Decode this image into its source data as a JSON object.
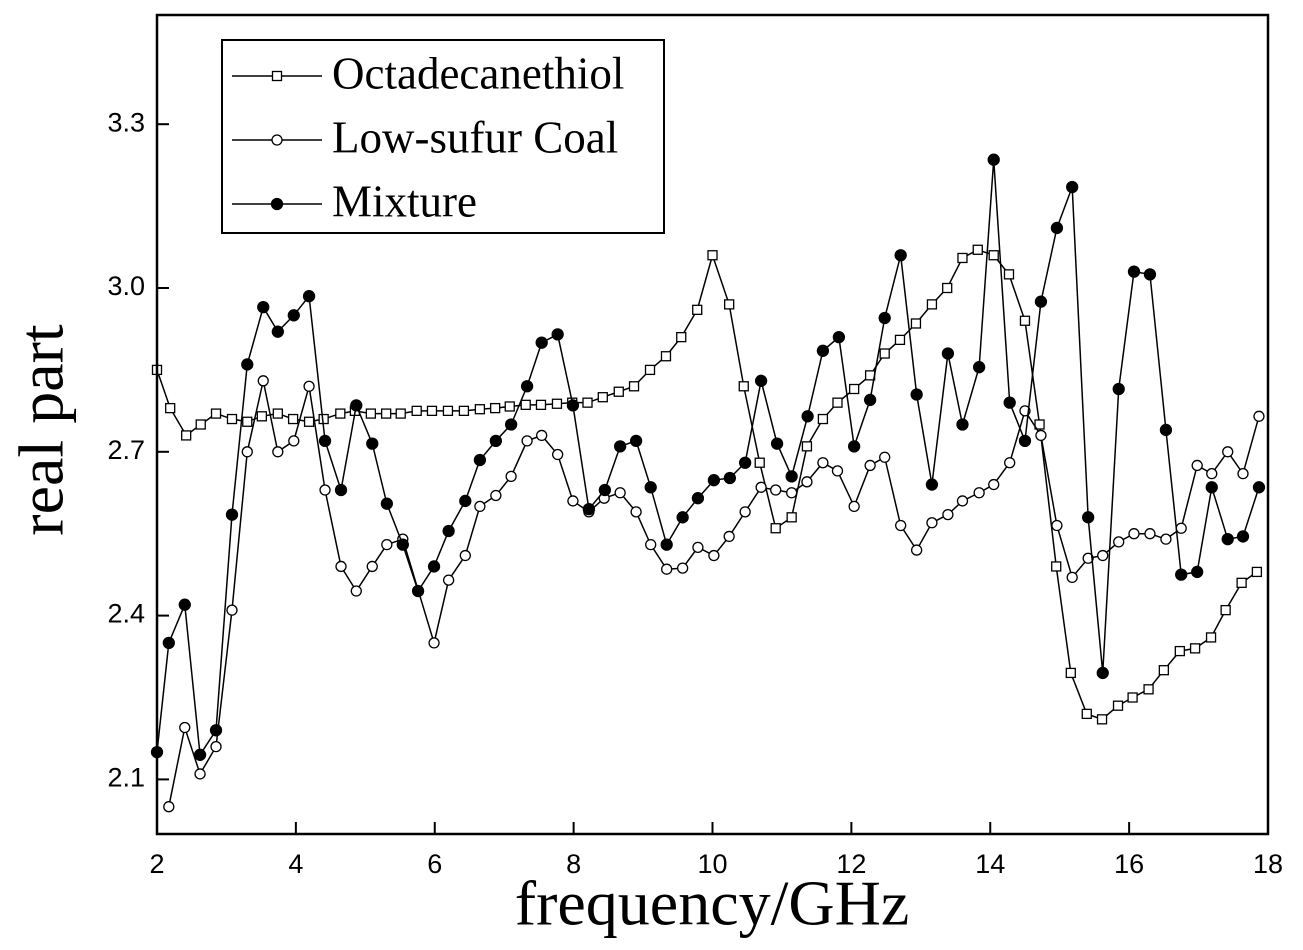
{
  "chart_data": {
    "type": "line",
    "xlabel": "frequency/GHz",
    "ylabel": "real part",
    "xlim": [
      2,
      18
    ],
    "ylim": [
      2.0,
      3.5
    ],
    "xticks": [
      2,
      4,
      6,
      8,
      10,
      12,
      14,
      16,
      18
    ],
    "yticks": [
      2.1,
      2.4,
      2.7,
      {
        "value": 3,
        "label": "3.0"
      },
      3.3
    ],
    "legend": "upper left",
    "series": [
      {
        "name": "Octadecanethiol",
        "color": "#000000",
        "marker": "square",
        "x": [
          2.0,
          2.19,
          2.42,
          2.63,
          2.85,
          3.08,
          3.3,
          3.51,
          3.74,
          3.96,
          4.19,
          4.4,
          4.64,
          4.85,
          5.08,
          5.3,
          5.51,
          5.74,
          5.96,
          6.19,
          6.42,
          6.65,
          6.87,
          7.08,
          7.31,
          7.53,
          7.76,
          7.98,
          8.2,
          8.42,
          8.65,
          8.87,
          9.1,
          9.33,
          9.55,
          9.78,
          10.0,
          10.24,
          10.45,
          10.68,
          10.91,
          11.14,
          11.36,
          11.59,
          11.8,
          12.04,
          12.27,
          12.48,
          12.7,
          12.93,
          13.16,
          13.38,
          13.6,
          13.82,
          14.05,
          14.27,
          14.5,
          14.71,
          14.95,
          15.16,
          15.39,
          15.61,
          15.84,
          16.05,
          16.28,
          16.5,
          16.73,
          16.95,
          17.18,
          17.39,
          17.62,
          17.84
        ],
        "values": [
          2.85,
          2.78,
          2.73,
          2.75,
          2.77,
          2.76,
          2.755,
          2.765,
          2.77,
          2.76,
          2.755,
          2.76,
          2.77,
          2.775,
          2.77,
          2.77,
          2.77,
          2.775,
          2.775,
          2.775,
          2.775,
          2.778,
          2.78,
          2.783,
          2.786,
          2.786,
          2.788,
          2.79,
          2.79,
          2.8,
          2.81,
          2.82,
          2.85,
          2.875,
          2.91,
          2.96,
          3.06,
          2.97,
          2.82,
          2.68,
          2.56,
          2.58,
          2.71,
          2.76,
          2.79,
          2.815,
          2.84,
          2.88,
          2.905,
          2.935,
          2.97,
          3.0,
          3.055,
          3.07,
          3.06,
          3.025,
          2.94,
          2.75,
          2.49,
          2.295,
          2.22,
          2.21,
          2.235,
          2.25,
          2.265,
          2.3,
          2.335,
          2.34,
          2.36,
          2.41,
          2.46,
          2.48
        ]
      },
      {
        "name": "Low-sufur Coal",
        "color": "#000000",
        "marker": "circle",
        "x": [
          2.17,
          2.4,
          2.62,
          2.85,
          3.08,
          3.3,
          3.53,
          3.74,
          3.97,
          4.19,
          4.42,
          4.65,
          4.87,
          5.1,
          5.31,
          5.54,
          5.99,
          6.2,
          6.44,
          6.65,
          6.88,
          7.1,
          7.33,
          7.54,
          7.77,
          7.99,
          8.22,
          8.44,
          8.67,
          8.9,
          9.11,
          9.34,
          9.57,
          9.79,
          10.02,
          10.24,
          10.47,
          10.7,
          10.91,
          11.14,
          11.36,
          11.59,
          11.8,
          12.04,
          12.27,
          12.48,
          12.71,
          12.94,
          13.16,
          13.39,
          13.6,
          13.84,
          14.05,
          14.28,
          14.5,
          14.73,
          14.96,
          15.18,
          15.41,
          15.62,
          15.85,
          16.07,
          16.3,
          16.53,
          16.75,
          16.98,
          17.19,
          17.42,
          17.64,
          17.87
        ],
        "values": [
          2.05,
          2.195,
          2.11,
          2.16,
          2.41,
          2.7,
          2.83,
          2.7,
          2.72,
          2.82,
          2.63,
          2.49,
          2.445,
          2.49,
          2.53,
          2.54,
          2.35,
          2.465,
          2.51,
          2.6,
          2.62,
          2.655,
          2.72,
          2.73,
          2.695,
          2.61,
          2.59,
          2.615,
          2.625,
          2.59,
          2.53,
          2.485,
          2.487,
          2.525,
          2.51,
          2.545,
          2.59,
          2.635,
          2.63,
          2.625,
          2.645,
          2.68,
          2.665,
          2.6,
          2.675,
          2.69,
          2.565,
          2.52,
          2.57,
          2.585,
          2.61,
          2.625,
          2.64,
          2.68,
          2.775,
          2.73,
          2.565,
          2.47,
          2.505,
          2.51,
          2.535,
          2.55,
          2.55,
          2.54,
          2.56,
          2.675,
          2.66,
          2.7,
          2.66,
          2.765
        ]
      },
      {
        "name": "Mixture",
        "color": "#000000",
        "marker": "disc",
        "x": [
          2.0,
          2.17,
          2.4,
          2.62,
          2.85,
          3.08,
          3.3,
          3.53,
          3.74,
          3.97,
          4.19,
          4.42,
          4.65,
          4.87,
          5.1,
          5.31,
          5.54,
          5.76,
          5.99,
          6.2,
          6.44,
          6.65,
          6.88,
          7.1,
          7.33,
          7.54,
          7.77,
          7.99,
          8.22,
          8.45,
          8.67,
          8.9,
          9.11,
          9.34,
          9.57,
          9.79,
          10.02,
          10.25,
          10.47,
          10.7,
          10.93,
          11.14,
          11.37,
          11.59,
          11.82,
          12.04,
          12.27,
          12.48,
          12.71,
          12.94,
          13.16,
          13.39,
          13.6,
          13.84,
          14.05,
          14.28,
          14.5,
          14.73,
          14.96,
          15.18,
          15.41,
          15.62,
          15.85,
          16.07,
          16.3,
          16.53,
          16.75,
          16.98,
          17.19,
          17.42,
          17.64,
          17.87
        ],
        "values": [
          2.15,
          2.35,
          2.42,
          2.145,
          2.19,
          2.585,
          2.86,
          2.965,
          2.92,
          2.95,
          2.985,
          2.72,
          2.63,
          2.785,
          2.715,
          2.605,
          2.53,
          2.445,
          2.49,
          2.555,
          2.61,
          2.685,
          2.72,
          2.75,
          2.82,
          2.9,
          2.915,
          2.785,
          2.595,
          2.63,
          2.71,
          2.72,
          2.635,
          2.53,
          2.58,
          2.615,
          2.648,
          2.652,
          2.68,
          2.83,
          2.715,
          2.655,
          2.765,
          2.885,
          2.91,
          2.71,
          2.795,
          2.945,
          3.06,
          2.805,
          2.64,
          2.88,
          2.75,
          2.855,
          3.235,
          2.79,
          2.72,
          2.975,
          3.11,
          3.185,
          2.58,
          2.295,
          2.815,
          3.03,
          3.025,
          2.74,
          2.475,
          2.48,
          2.635,
          2.54,
          2.545,
          2.635
        ]
      }
    ]
  }
}
